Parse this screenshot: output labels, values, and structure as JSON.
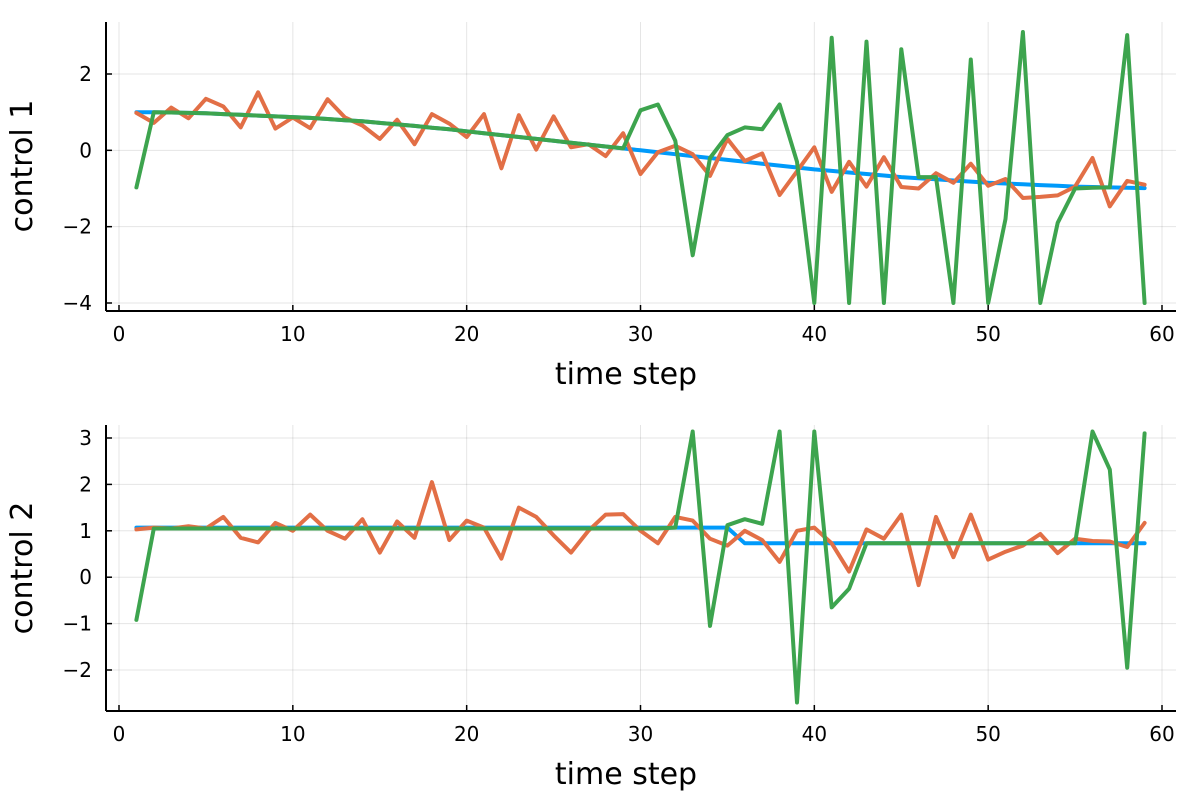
{
  "colors": {
    "series1": "#009AFA",
    "series2": "#E26F46",
    "series3": "#3DA44E"
  },
  "chart_data": [
    {
      "type": "line",
      "xlabel": "time step",
      "ylabel": "control 1",
      "xlim": [
        1,
        59
      ],
      "ylim": [
        -4,
        3
      ],
      "xticks": [
        0,
        10,
        20,
        30,
        40,
        50,
        60
      ],
      "yticks": [
        -4,
        -2,
        0,
        2
      ],
      "x": [
        1,
        2,
        3,
        4,
        5,
        6,
        7,
        8,
        9,
        10,
        11,
        12,
        13,
        14,
        15,
        16,
        17,
        18,
        19,
        20,
        21,
        22,
        23,
        24,
        25,
        26,
        27,
        28,
        29,
        30,
        31,
        32,
        33,
        34,
        35,
        36,
        37,
        38,
        39,
        40,
        41,
        42,
        43,
        44,
        45,
        46,
        47,
        48,
        49,
        50,
        51,
        52,
        53,
        54,
        55,
        56,
        57,
        58,
        59
      ],
      "grid": true,
      "legend": "none",
      "series": [
        {
          "values": [
            1.0,
            1.0,
            0.99,
            0.98,
            0.97,
            0.95,
            0.93,
            0.91,
            0.89,
            0.87,
            0.85,
            0.82,
            0.79,
            0.76,
            0.72,
            0.68,
            0.64,
            0.59,
            0.55,
            0.5,
            0.45,
            0.4,
            0.35,
            0.3,
            0.25,
            0.2,
            0.15,
            0.1,
            0.05,
            0.0,
            -0.05,
            -0.1,
            -0.15,
            -0.2,
            -0.25,
            -0.3,
            -0.35,
            -0.4,
            -0.45,
            -0.5,
            -0.54,
            -0.58,
            -0.62,
            -0.66,
            -0.7,
            -0.73,
            -0.76,
            -0.79,
            -0.82,
            -0.85,
            -0.87,
            -0.89,
            -0.91,
            -0.93,
            -0.95,
            -0.96,
            -0.97,
            -0.98,
            -0.99
          ]
        },
        {
          "values": [
            0.98,
            0.72,
            1.12,
            0.84,
            1.35,
            1.15,
            0.6,
            1.52,
            0.57,
            0.86,
            0.58,
            1.34,
            0.86,
            0.65,
            0.3,
            0.8,
            0.16,
            0.95,
            0.7,
            0.35,
            0.95,
            -0.47,
            0.92,
            0.02,
            0.89,
            0.08,
            0.16,
            -0.15,
            0.45,
            -0.62,
            -0.05,
            0.12,
            -0.1,
            -0.67,
            0.3,
            -0.28,
            -0.08,
            -1.17,
            -0.55,
            0.08,
            -1.09,
            -0.3,
            -0.95,
            -0.18,
            -0.96,
            -1.0,
            -0.6,
            -0.85,
            -0.35,
            -0.93,
            -0.75,
            -1.25,
            -1.22,
            -1.18,
            -0.95,
            -0.2,
            -1.47,
            -0.8,
            -0.9
          ]
        },
        {
          "values": [
            -0.97,
            1.0,
            0.99,
            0.98,
            0.97,
            0.95,
            0.93,
            0.91,
            0.89,
            0.87,
            0.85,
            0.82,
            0.79,
            0.76,
            0.72,
            0.68,
            0.64,
            0.59,
            0.55,
            0.5,
            0.45,
            0.4,
            0.35,
            0.3,
            0.25,
            0.2,
            0.15,
            0.1,
            0.05,
            1.05,
            1.2,
            0.25,
            -2.75,
            -0.2,
            0.4,
            0.6,
            0.55,
            1.2,
            -0.3,
            -4.0,
            2.95,
            -4.0,
            2.85,
            -4.0,
            2.65,
            -0.7,
            -0.7,
            -4.0,
            2.38,
            -4.0,
            -1.8,
            3.1,
            -4.0,
            -1.9,
            -1.0,
            -0.98,
            -0.97,
            3.02,
            -4.0
          ]
        }
      ]
    },
    {
      "type": "line",
      "xlabel": "time step",
      "ylabel": "control 2",
      "xlim": [
        1,
        59
      ],
      "ylim": [
        -2.7,
        3.14
      ],
      "xticks": [
        0,
        10,
        20,
        30,
        40,
        50,
        60
      ],
      "yticks": [
        -2,
        -1,
        0,
        1,
        2,
        3
      ],
      "x": [
        1,
        2,
        3,
        4,
        5,
        6,
        7,
        8,
        9,
        10,
        11,
        12,
        13,
        14,
        15,
        16,
        17,
        18,
        19,
        20,
        21,
        22,
        23,
        24,
        25,
        26,
        27,
        28,
        29,
        30,
        31,
        32,
        33,
        34,
        35,
        36,
        37,
        38,
        39,
        40,
        41,
        42,
        43,
        44,
        45,
        46,
        47,
        48,
        49,
        50,
        51,
        52,
        53,
        54,
        55,
        56,
        57,
        58,
        59
      ],
      "grid": true,
      "legend": "none",
      "series": [
        {
          "values": [
            1.07,
            1.07,
            1.07,
            1.07,
            1.07,
            1.07,
            1.07,
            1.07,
            1.07,
            1.07,
            1.07,
            1.07,
            1.07,
            1.07,
            1.07,
            1.07,
            1.07,
            1.07,
            1.07,
            1.07,
            1.07,
            1.07,
            1.07,
            1.07,
            1.07,
            1.07,
            1.07,
            1.07,
            1.07,
            1.07,
            1.07,
            1.07,
            1.07,
            1.07,
            1.07,
            0.73,
            0.73,
            0.73,
            0.73,
            0.73,
            0.73,
            0.73,
            0.73,
            0.73,
            0.73,
            0.73,
            0.73,
            0.73,
            0.73,
            0.73,
            0.73,
            0.73,
            0.73,
            0.73,
            0.73,
            0.73,
            0.73,
            0.73,
            0.73
          ]
        },
        {
          "values": [
            1.03,
            1.07,
            1.05,
            1.1,
            1.05,
            1.3,
            0.85,
            0.75,
            1.17,
            1.0,
            1.35,
            1.0,
            0.83,
            1.25,
            0.53,
            1.2,
            0.85,
            2.05,
            0.8,
            1.22,
            1.07,
            0.4,
            1.5,
            1.3,
            0.9,
            0.53,
            1.0,
            1.35,
            1.36,
            1.0,
            0.73,
            1.3,
            1.22,
            0.83,
            0.68,
            1.0,
            0.8,
            0.33,
            1.0,
            1.07,
            0.73,
            0.12,
            1.03,
            0.83,
            1.35,
            -0.17,
            1.3,
            0.43,
            1.35,
            0.38,
            0.55,
            0.68,
            0.93,
            0.52,
            0.83,
            0.78,
            0.77,
            0.65,
            1.17
          ]
        },
        {
          "values": [
            -0.92,
            1.05,
            1.05,
            1.05,
            1.05,
            1.05,
            1.05,
            1.05,
            1.05,
            1.05,
            1.05,
            1.05,
            1.05,
            1.05,
            1.05,
            1.05,
            1.05,
            1.05,
            1.05,
            1.05,
            1.05,
            1.05,
            1.05,
            1.05,
            1.05,
            1.05,
            1.05,
            1.05,
            1.05,
            1.05,
            1.05,
            1.07,
            3.14,
            -1.05,
            1.12,
            1.25,
            1.15,
            3.14,
            -2.7,
            3.14,
            -0.65,
            -0.25,
            0.73,
            0.73,
            0.73,
            0.73,
            0.73,
            0.73,
            0.73,
            0.73,
            0.73,
            0.73,
            0.73,
            0.73,
            0.73,
            3.14,
            2.32,
            -1.95,
            3.1
          ]
        }
      ]
    }
  ]
}
